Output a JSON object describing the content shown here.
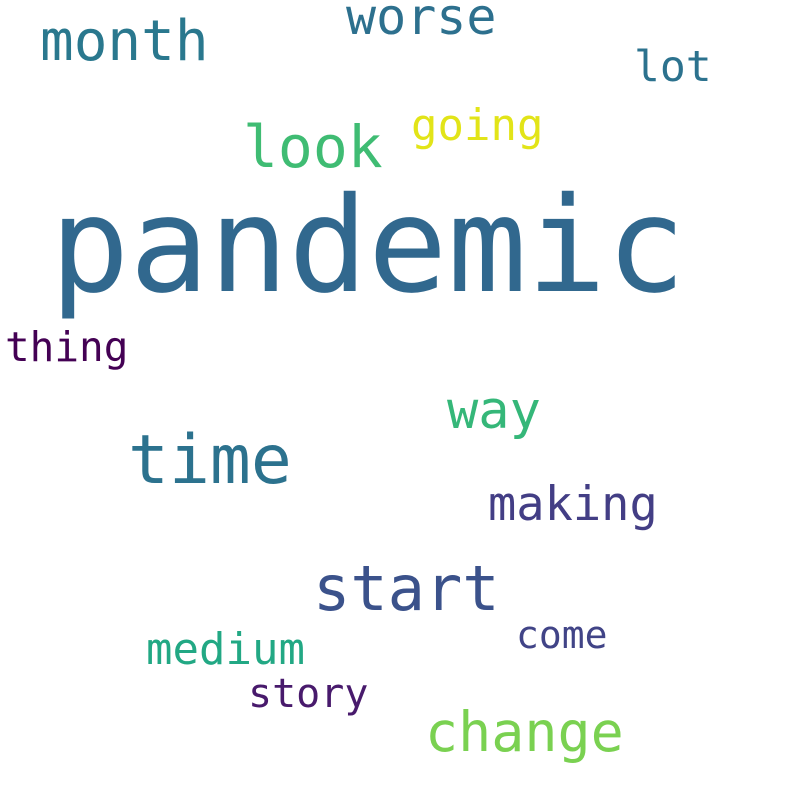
{
  "background": "#ffffff",
  "words": [
    {
      "key": "pandemic",
      "text": "pandemic",
      "color": "#31688e"
    },
    {
      "key": "time",
      "text": "time",
      "color": "#2c728e"
    },
    {
      "key": "start",
      "text": "start",
      "color": "#3b528b"
    },
    {
      "key": "change",
      "text": "change",
      "color": "#7ad151"
    },
    {
      "key": "look",
      "text": "look",
      "color": "#3fbc73"
    },
    {
      "key": "month",
      "text": "month",
      "color": "#2a788e"
    },
    {
      "key": "worse",
      "text": "worse",
      "color": "#2d708e"
    },
    {
      "key": "way",
      "text": "way",
      "color": "#35b779"
    },
    {
      "key": "making",
      "text": "making",
      "color": "#433e85"
    },
    {
      "key": "medium",
      "text": "medium",
      "color": "#22a884"
    },
    {
      "key": "going",
      "text": "going",
      "color": "#e2e418"
    },
    {
      "key": "lot",
      "text": "lot",
      "color": "#2c728e"
    },
    {
      "key": "thing",
      "text": "thing",
      "color": "#440154"
    },
    {
      "key": "story",
      "text": "story",
      "color": "#481a6c"
    },
    {
      "key": "come",
      "text": "come",
      "color": "#414487"
    }
  ]
}
